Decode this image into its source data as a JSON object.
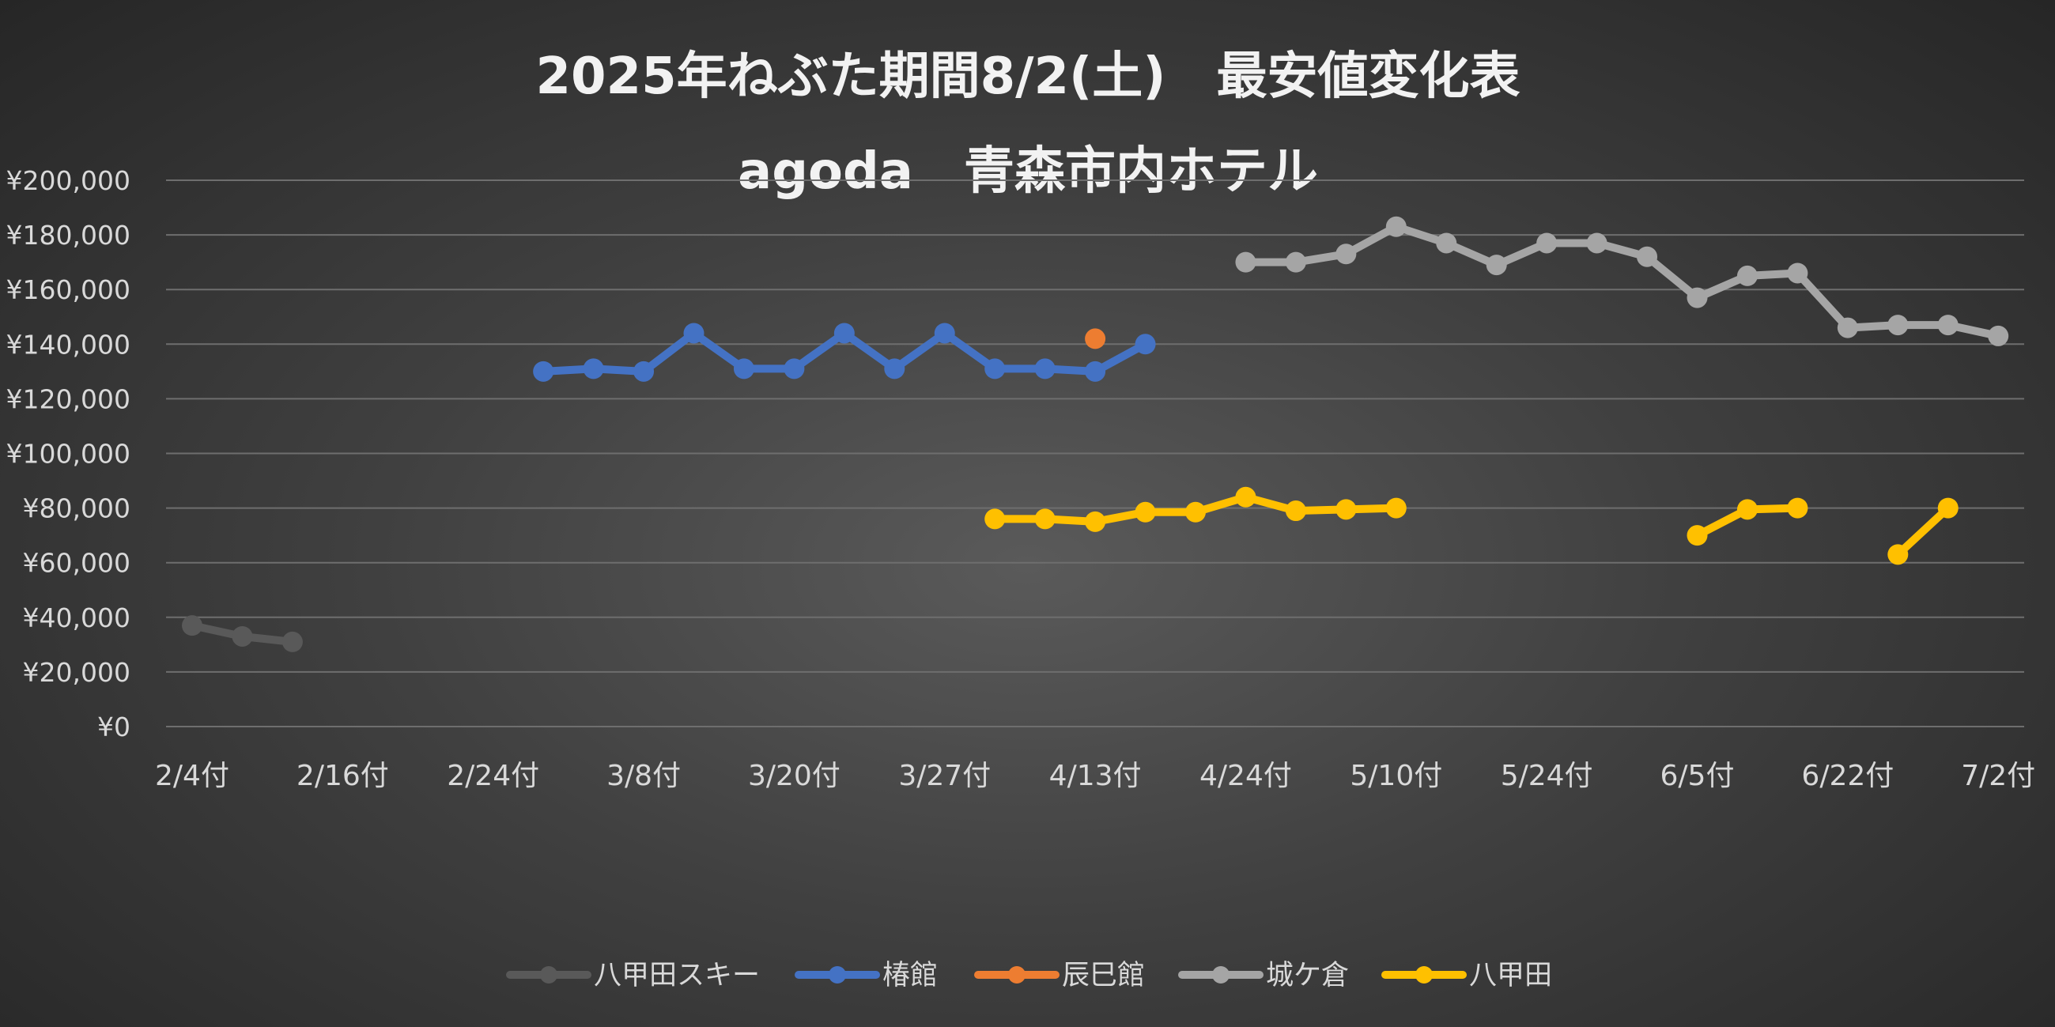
{
  "chart_data": {
    "type": "line",
    "title": "2025年ねぶた期間8/2(土)　最安値変化表",
    "subtitle": "agoda　青森市内ホテル",
    "xlabel": "",
    "ylabel": "",
    "ylim": [
      0,
      200000
    ],
    "y_ticks": [
      0,
      20000,
      40000,
      60000,
      80000,
      100000,
      120000,
      140000,
      160000,
      180000,
      200000
    ],
    "y_tick_labels": [
      "¥0",
      "¥20,000",
      "¥40,000",
      "¥60,000",
      "¥80,000",
      "¥100,000",
      "¥120,000",
      "¥140,000",
      "¥160,000",
      "¥180,000",
      "¥200,000"
    ],
    "categories": [
      "2/4付",
      "",
      "",
      "2/16付",
      "",
      "",
      "2/24付",
      "",
      "",
      "3/8付",
      "",
      "",
      "3/20付",
      "",
      "",
      "3/27付",
      "",
      "",
      "4/13付",
      "",
      "",
      "4/24付",
      "",
      "",
      "5/10付",
      "",
      "",
      "5/24付",
      "",
      "",
      "6/5付",
      "",
      "",
      "6/22付",
      "",
      "",
      "7/2付"
    ],
    "grid": "horizontal",
    "legend_position": "bottom",
    "series": [
      {
        "name": "八甲田スキー",
        "color": "#595959",
        "values": [
          37000,
          33000,
          31000,
          null,
          null,
          null,
          null,
          null,
          null,
          null,
          null,
          null,
          null,
          null,
          null,
          null,
          null,
          null,
          null,
          null,
          null,
          null,
          null,
          null,
          null,
          null,
          null,
          null,
          null,
          null,
          null,
          null,
          null,
          null,
          null,
          null,
          null
        ]
      },
      {
        "name": "椿館",
        "color": "#4472c4",
        "values": [
          null,
          null,
          null,
          null,
          null,
          null,
          null,
          130000,
          131000,
          130000,
          144000,
          131000,
          131000,
          144000,
          131000,
          144000,
          131000,
          131000,
          130000,
          140000,
          null,
          null,
          null,
          null,
          null,
          null,
          null,
          null,
          null,
          null,
          null,
          null,
          null,
          null,
          null,
          null,
          null
        ]
      },
      {
        "name": "辰巳館",
        "color": "#ed7d31",
        "values": [
          null,
          null,
          null,
          null,
          null,
          null,
          null,
          null,
          null,
          null,
          null,
          null,
          null,
          null,
          null,
          null,
          null,
          null,
          142000,
          null,
          null,
          null,
          null,
          null,
          null,
          null,
          null,
          null,
          null,
          null,
          null,
          null,
          null,
          null,
          null,
          null,
          null
        ]
      },
      {
        "name": "城ケ倉",
        "color": "#a5a5a5",
        "values": [
          null,
          null,
          null,
          null,
          null,
          null,
          null,
          null,
          null,
          null,
          null,
          null,
          null,
          null,
          null,
          null,
          null,
          null,
          null,
          null,
          null,
          170000,
          170000,
          173000,
          183000,
          177000,
          169000,
          177000,
          177000,
          172000,
          157000,
          165000,
          166000,
          146000,
          147000,
          147000,
          143000
        ]
      },
      {
        "name": "八甲田",
        "color": "#ffc000",
        "values": [
          null,
          null,
          null,
          null,
          null,
          null,
          null,
          null,
          null,
          null,
          null,
          null,
          null,
          null,
          null,
          null,
          76000,
          76000,
          75000,
          78500,
          78500,
          84000,
          79000,
          79500,
          80000,
          null,
          null,
          null,
          null,
          null,
          70000,
          79500,
          80000,
          null,
          63000,
          80000,
          null
        ]
      }
    ]
  }
}
